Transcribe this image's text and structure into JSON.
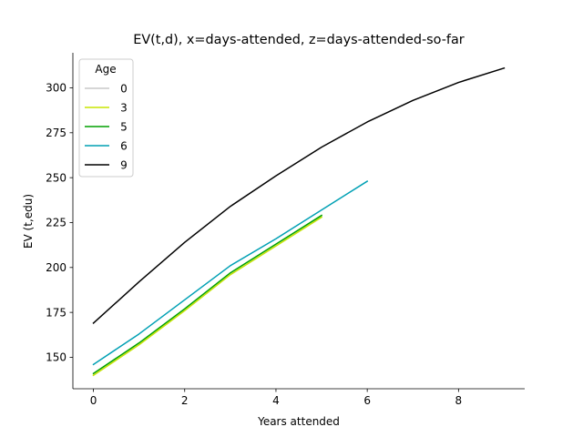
{
  "chart_data": {
    "type": "line",
    "title": "EV(t,d), x=days-attended, z=days-attended-so-far",
    "xlabel": "Years attended",
    "ylabel": "EV (t,edu)",
    "xlim": [
      -0.45,
      9.45
    ],
    "ylim": [
      132.5,
      319.5
    ],
    "xticks": [
      0,
      2,
      4,
      6,
      8
    ],
    "yticks": [
      150,
      175,
      200,
      225,
      250,
      275,
      300
    ],
    "grid": false,
    "legend": {
      "title": "Age",
      "placement": "upper-left"
    },
    "series": [
      {
        "name": "0",
        "color": "#c8c8c8",
        "x": [
          0,
          1,
          2,
          3,
          4,
          5
        ],
        "y": [
          140,
          157,
          176,
          196,
          212,
          228
        ]
      },
      {
        "name": "3",
        "color": "#c8e600",
        "x": [
          0,
          1,
          2,
          3,
          4,
          5
        ],
        "y": [
          140,
          157,
          176,
          196,
          212,
          228
        ]
      },
      {
        "name": "5",
        "color": "#00a000",
        "x": [
          0,
          1,
          2,
          3,
          4,
          5
        ],
        "y": [
          141,
          158,
          177,
          197,
          213,
          229
        ]
      },
      {
        "name": "6",
        "color": "#00a0b4",
        "x": [
          0,
          1,
          2,
          3,
          4,
          5,
          6
        ],
        "y": [
          146,
          163,
          182,
          201,
          216,
          232,
          248
        ]
      },
      {
        "name": "9",
        "color": "#000000",
        "x": [
          0,
          1,
          2,
          3,
          4,
          5,
          6,
          7,
          8,
          9
        ],
        "y": [
          169,
          192,
          214,
          234,
          251,
          267,
          281,
          293,
          303,
          311
        ]
      }
    ]
  }
}
